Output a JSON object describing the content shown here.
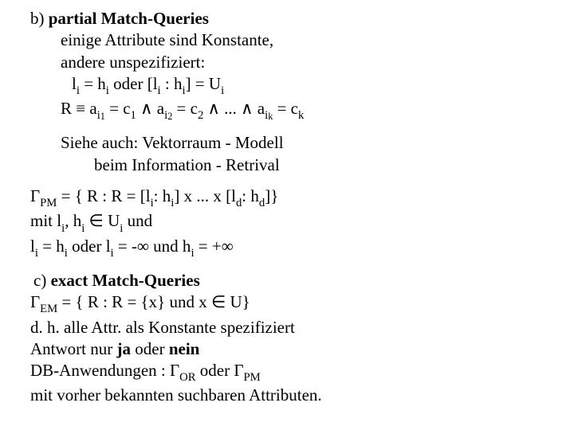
{
  "font": {
    "family": "Times New Roman",
    "base_size_pt": 16,
    "sub_scale": 0.7
  },
  "colors": {
    "text": "#000000",
    "background": "#ffffff"
  },
  "glyphs": {
    "identical": "≡",
    "wedge": "∧",
    "Gamma": "Γ",
    "element": "∈",
    "infinity": "∞"
  },
  "b": {
    "title_prefix": "b) ",
    "title_bold": "partial Match-Queries",
    "line1": "einige Attribute sind Konstante,",
    "line2": "andere unspezifiziert:",
    "eq1": {
      "l": "l",
      "eq": " = ",
      "h": "h",
      "oder": " oder [",
      "colon": " : ",
      "close": "] = U",
      "i": "i"
    },
    "eq2": {
      "R": "R ",
      "ident": "≡",
      "a": " a",
      "eqc": " = c",
      "dots": "... ",
      "i": "i",
      "n1": "1",
      "n2": "2",
      "nk": "k",
      "wedge": " ∧ "
    },
    "see1": "Siehe auch: Vektorraum - Modell",
    "see2": "beim Information - Retrival",
    "gamma1": {
      "Gamma": "Γ",
      "PM": "PM",
      "body": " = { R : R = [l",
      "i": "i",
      "colon": ": h",
      "mid": "] x ... x [l",
      "d": "d",
      "colon2": ": h",
      "end": "]}"
    },
    "mit": {
      "pre": "mit l",
      "i": "i",
      "comma": ", h",
      "in": " ∈ U",
      "und": " und"
    },
    "lh": {
      "pre": "l",
      "i": "i",
      "eq": " = h",
      "oder": " oder  l",
      "neg": " = -∞ und h",
      "pos": " = +∞"
    }
  },
  "c": {
    "title_prefix": "c) ",
    "title_bold": "exact Match-Queries",
    "gamma": {
      "Gamma": "Γ",
      "EM": "EM",
      "body": " = { R : R = {x} und x ∈ U}"
    },
    "line2": "d. h. alle Attr. als Konstante spezifiziert",
    "line3_pre": "Antwort nur ",
    "line3_ja": "ja",
    "line3_mid": " oder ",
    "line3_nein": "nein",
    "line4": {
      "pre": "DB-Anwendungen : ",
      "Gamma": "Γ",
      "OR": "OR",
      "oder": " oder   ",
      "PM": "PM"
    },
    "line5": "mit vorher bekannten suchbaren Attributen."
  }
}
